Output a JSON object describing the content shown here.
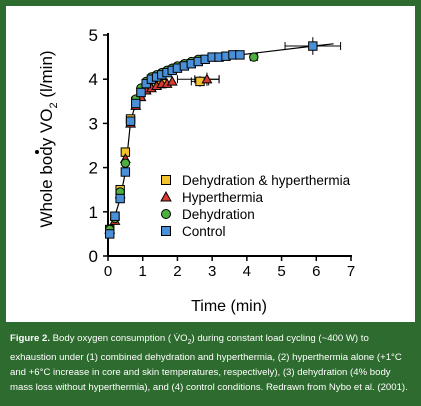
{
  "chart_data": {
    "type": "scatter",
    "xlabel": "Time (min)",
    "ylabel_main": "Whole body V",
    "ylabel_sub": "O",
    "ylabel_sub2": "2",
    "ylabel_unit": " (l/min)",
    "xlim": [
      0,
      7
    ],
    "ylim": [
      0,
      5
    ],
    "x_ticks": [
      "0",
      "1",
      "2",
      "3",
      "4",
      "5",
      "6",
      "7"
    ],
    "y_ticks": [
      "0",
      "1",
      "2",
      "3",
      "4",
      "5"
    ],
    "legend_position": "center-right",
    "series": [
      {
        "name": "Dehydration & hyperthermia",
        "marker": "square",
        "color": "#f2c230",
        "x": [
          0.05,
          0.2,
          0.35,
          0.5,
          0.65,
          0.8,
          0.95,
          1.1,
          1.25,
          1.4,
          1.55,
          2.65
        ],
        "y": [
          0.6,
          0.9,
          1.5,
          2.35,
          3.1,
          3.5,
          3.7,
          3.8,
          3.85,
          3.9,
          3.9,
          3.95
        ]
      },
      {
        "name": "Hyperthermia",
        "marker": "triangle",
        "color": "#d93a2f",
        "x": [
          0.05,
          0.2,
          0.35,
          0.5,
          0.65,
          0.8,
          0.95,
          1.1,
          1.25,
          1.4,
          1.55,
          1.7,
          1.85,
          2.85
        ],
        "y": [
          0.6,
          0.8,
          1.4,
          2.2,
          3.0,
          3.4,
          3.6,
          3.75,
          3.8,
          3.85,
          3.9,
          3.9,
          3.95,
          4.0
        ]
      },
      {
        "name": "Dehydration",
        "marker": "circle",
        "color": "#4caf3e",
        "x": [
          0.05,
          0.2,
          0.35,
          0.5,
          0.65,
          0.8,
          0.95,
          1.1,
          1.25,
          1.4,
          1.55,
          1.7,
          1.85,
          2.0,
          2.2,
          2.4,
          2.6,
          4.2
        ],
        "y": [
          0.6,
          0.85,
          1.45,
          2.1,
          3.05,
          3.55,
          3.8,
          3.95,
          4.05,
          4.1,
          4.15,
          4.2,
          4.25,
          4.3,
          4.35,
          4.4,
          4.45,
          4.5
        ]
      },
      {
        "name": "Control",
        "marker": "square",
        "color": "#4a90d9",
        "x": [
          0.05,
          0.2,
          0.35,
          0.5,
          0.65,
          0.8,
          0.95,
          1.1,
          1.25,
          1.4,
          1.55,
          1.7,
          1.85,
          2.0,
          2.2,
          2.4,
          2.6,
          2.8,
          3.0,
          3.2,
          3.4,
          3.6,
          3.8,
          5.9
        ],
        "y": [
          0.5,
          0.9,
          1.3,
          1.9,
          3.05,
          3.45,
          3.7,
          3.9,
          4.0,
          4.05,
          4.1,
          4.15,
          4.2,
          4.25,
          4.3,
          4.35,
          4.4,
          4.45,
          4.5,
          4.5,
          4.52,
          4.55,
          4.55,
          4.75
        ]
      }
    ]
  },
  "caption": {
    "label": "Figure 2.",
    "line1": " Body oxygen consumption ( V̇O",
    "line1_sub": "2",
    "line1_rest": ") during constant load cycling (~400 W) to",
    "line2": "exhaustion under (1) combined dehydration and hyperthermia, (2) hyperthermia alone (+1°C",
    "line3": "and +6°C increase in core and skin temperatures, respectively), (3) dehydration (4% body",
    "line4": "mass loss without hyperthermia), and (4) control conditions. Redrawn from Nybo et al. (2001)."
  }
}
